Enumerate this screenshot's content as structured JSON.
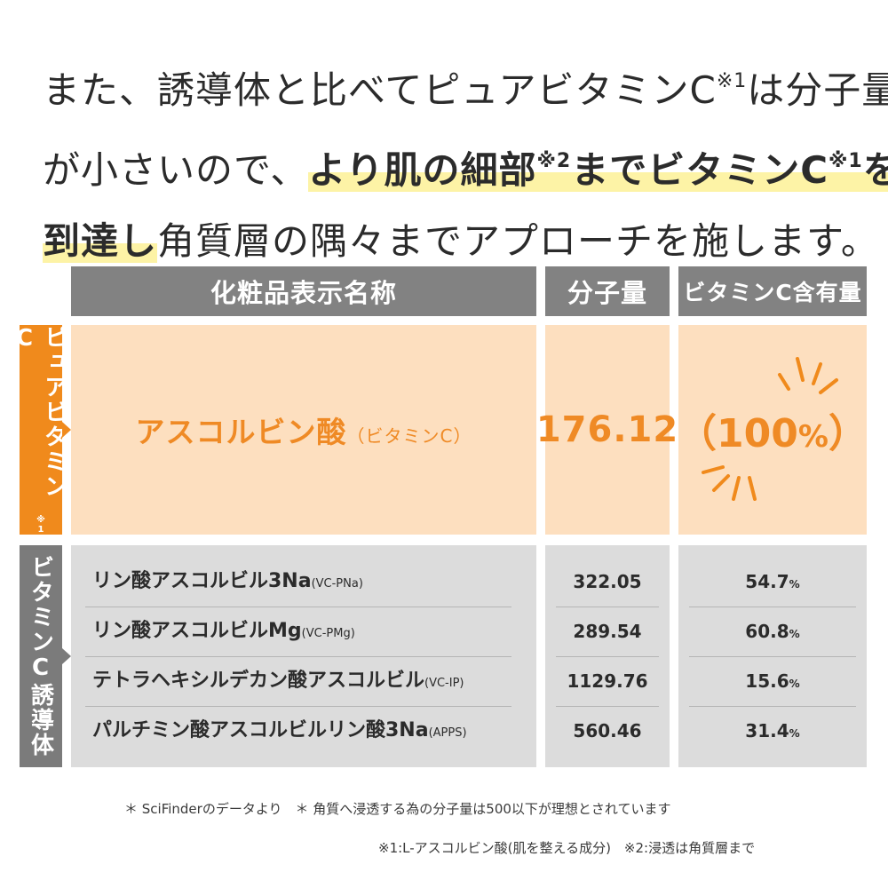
{
  "headline": {
    "line1_a": "また、誘導体と比べてピュアビタミンC",
    "line1_note": "※1",
    "line1_b": "は分子量",
    "line2_a": "が小さいので、",
    "line2_hl1": "より肌の細部",
    "line2_note1": "※2",
    "line2_hl2": "までビタミンC",
    "line2_note2": "※1",
    "line2_hl3": "を",
    "line3_hl": "到達し",
    "line3_b": "角質層の隅々までアプローチを施します。"
  },
  "table": {
    "headers": {
      "name": "化粧品表示名称",
      "mw": "分子量",
      "content": "ビタミンC含有量"
    },
    "pure_group": {
      "label": "ピュアビタミンC",
      "note": "※1",
      "name": "アスコルビン酸",
      "name_sub": "（ビタミンC）",
      "mw": "176.12",
      "content_open": "（",
      "content_value": "100",
      "content_unit": "%",
      "content_close": "）"
    },
    "derivative_group": {
      "label": "ビタミンC誘導体",
      "rows": [
        {
          "name": "リン酸アスコルビル3Na",
          "code": "(VC-PNa)",
          "mw": "322.05",
          "pct": "54.7",
          "unit": "%"
        },
        {
          "name": "リン酸アスコルビルMg",
          "code": "(VC-PMg)",
          "mw": "289.54",
          "pct": "60.8",
          "unit": "%"
        },
        {
          "name": "テトラヘキシルデカン酸アスコルビル",
          "code": "(VC-IP)",
          "mw": "1129.76",
          "pct": "15.6",
          "unit": "%"
        },
        {
          "name": "パルチミン酸アスコルビルリン酸3Na",
          "code": "(APPS)",
          "mw": "560.46",
          "pct": "31.4",
          "unit": "%"
        }
      ]
    }
  },
  "footnotes": {
    "line1": "＊ SciFinderのデータより　＊ 角質へ浸透する為の分子量は500以下が理想とされています",
    "line2": "※1:L-アスコルビン酸(肌を整える成分)　※2:浸透は角質層まで"
  },
  "colors": {
    "accent_orange": "#f08a1c",
    "orange_cell": "#fddfbf",
    "header_gray": "#828282",
    "row_gray": "#dcdcdc",
    "highlight_yellow": "#fdf3a6"
  }
}
